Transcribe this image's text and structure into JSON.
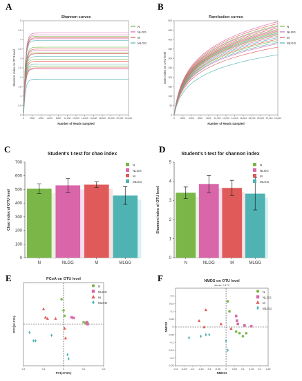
{
  "chart_data": [
    {
      "panel": "A",
      "type": "line",
      "title": "Shannon curves",
      "xlabel": "Number of Reads Sampled",
      "ylabel": "Shannon index on OTU level",
      "xlim": [
        0,
        24000
      ],
      "ylim": [
        0,
        5
      ],
      "xticks": [
        0,
        2000,
        4000,
        6000,
        8000,
        10000,
        12000,
        14000,
        16000,
        18000,
        20000,
        22000,
        24000
      ],
      "xtick_labels": [
        "0",
        "2000",
        "4000",
        "6000",
        "8000",
        "10,000",
        "12,000",
        "14,000",
        "16,000",
        "18,000",
        "20,000",
        "22,000",
        "24,000"
      ],
      "yticks": [
        0,
        0.5,
        1,
        1.5,
        2,
        2.5,
        3,
        3.5,
        4,
        4.5,
        5
      ],
      "ytick_labels": [
        "0",
        "0.5",
        "1",
        "1.5",
        "2",
        "2.5",
        "3",
        "3.5",
        "4",
        "4.5",
        "5"
      ],
      "legend": [
        "N",
        "NLGG",
        "M",
        "MLGG"
      ],
      "legend_position": "top-right",
      "colors": {
        "N": "#7ab648",
        "NLGG": "#d966a8",
        "M": "#e05a5a",
        "MLGG": "#4fb3b3"
      },
      "series": [
        {
          "group": "NLGG",
          "plateau": 4.35
        },
        {
          "group": "NLGG",
          "plateau": 4.25
        },
        {
          "group": "N",
          "plateau": 4.18
        },
        {
          "group": "M",
          "plateau": 4.1
        },
        {
          "group": "NLGG",
          "plateau": 4.05
        },
        {
          "group": "MLGG",
          "plateau": 3.95
        },
        {
          "group": "N",
          "plateau": 3.6
        },
        {
          "group": "M",
          "plateau": 3.5
        },
        {
          "group": "NLGG",
          "plateau": 3.42
        },
        {
          "group": "N",
          "plateau": 3.3
        },
        {
          "group": "M",
          "plateau": 3.25
        },
        {
          "group": "MLGG",
          "plateau": 3.1
        },
        {
          "group": "N",
          "plateau": 2.95
        },
        {
          "group": "M",
          "plateau": 2.85
        },
        {
          "group": "MLGG",
          "plateau": 2.7
        },
        {
          "group": "N",
          "plateau": 2.6
        },
        {
          "group": "M",
          "plateau": 2.5
        },
        {
          "group": "NLGG",
          "plateau": 2.45
        },
        {
          "group": "MLGG",
          "plateau": 1.9
        }
      ]
    },
    {
      "panel": "B",
      "type": "line",
      "title": "Rarefaction curves",
      "xlabel": "Number of Reads Sampled",
      "ylabel": "Sobs index on OTU level",
      "xlim": [
        0,
        24000
      ],
      "ylim": [
        0,
        500
      ],
      "xticks": [
        0,
        2000,
        4000,
        6000,
        8000,
        10000,
        12000,
        14000,
        16000,
        18000,
        20000,
        22000,
        24000
      ],
      "xtick_labels": [
        "0",
        "2000",
        "4000",
        "6000",
        "8000",
        "10,000",
        "12,000",
        "14,000",
        "16,000",
        "18,000",
        "20,000",
        "22,000",
        "24,000"
      ],
      "yticks": [
        0,
        50,
        100,
        150,
        200,
        250,
        300,
        350,
        400,
        450,
        500
      ],
      "ytick_labels": [
        "0",
        "50",
        "100",
        "150",
        "200",
        "250",
        "300",
        "350",
        "400",
        "450",
        "500"
      ],
      "legend": [
        "N",
        "NLGG",
        "M",
        "MLGG"
      ],
      "legend_position": "top-right",
      "series": [
        {
          "group": "NLGG",
          "end": 495
        },
        {
          "group": "M",
          "end": 485
        },
        {
          "group": "N",
          "end": 475
        },
        {
          "group": "NLGG",
          "end": 470
        },
        {
          "group": "M",
          "end": 462
        },
        {
          "group": "N",
          "end": 455
        },
        {
          "group": "NLGG",
          "end": 450
        },
        {
          "group": "M",
          "end": 445
        },
        {
          "group": "N",
          "end": 440
        },
        {
          "group": "MLGG",
          "end": 435
        },
        {
          "group": "M",
          "end": 430
        },
        {
          "group": "N",
          "end": 425
        },
        {
          "group": "NLGG",
          "end": 418
        },
        {
          "group": "MLGG",
          "end": 410
        },
        {
          "group": "M",
          "end": 402
        },
        {
          "group": "N",
          "end": 395
        },
        {
          "group": "MLGG",
          "end": 385
        },
        {
          "group": "NLGG",
          "end": 378
        },
        {
          "group": "M",
          "end": 360
        },
        {
          "group": "MLGG",
          "end": 320
        }
      ]
    },
    {
      "panel": "C",
      "type": "bar",
      "title": "Student's t-test for chao index",
      "ylabel": "Chao index of OTU level",
      "categories": [
        "N",
        "NLGG",
        "M",
        "MLGG"
      ],
      "values": [
        505,
        530,
        535,
        455
      ],
      "errors": [
        35,
        50,
        20,
        65
      ],
      "ylim": [
        0,
        700
      ],
      "yticks": [
        0,
        100,
        200,
        300,
        400,
        500,
        600,
        700
      ],
      "legend": [
        "N",
        "NLGG",
        "M",
        "MLGG"
      ],
      "legend_position": "top-right"
    },
    {
      "panel": "D",
      "type": "bar",
      "title": "Student's t-test for shannon index",
      "ylabel": "Shannon index of OTU level",
      "categories": [
        "N",
        "NLGG",
        "M",
        "MLGG"
      ],
      "values": [
        3.4,
        3.85,
        3.65,
        3.35
      ],
      "errors": [
        0.3,
        0.45,
        0.4,
        0.85
      ],
      "ylim": [
        0,
        5
      ],
      "yticks": [
        0,
        1,
        2,
        3,
        4,
        5
      ],
      "legend": [
        "N",
        "NLGG",
        "M",
        "MLGG"
      ],
      "legend_position": "top-right"
    },
    {
      "panel": "E",
      "type": "scatter",
      "title": "PCoA on OTU level",
      "xlabel": "PC1(17.5%)",
      "ylabel": "PC2(10.21%)",
      "xlim": [
        -0.2,
        0.2
      ],
      "ylim": [
        -0.3,
        0.3
      ],
      "xticks": [
        -0.2,
        -0.1,
        0,
        0.1,
        0.2
      ],
      "xtick_labels": [
        "0.2",
        "0.1",
        "0",
        "0.1",
        "0.2"
      ],
      "legend": [
        "N",
        "NLGG",
        "M",
        "MLGG"
      ],
      "legend_position": "top-right",
      "points": [
        {
          "group": "N",
          "x": -0.01,
          "y": 0.18
        },
        {
          "group": "N",
          "x": 0.0,
          "y": 0.1
        },
        {
          "group": "N",
          "x": 0.1,
          "y": 0.015
        },
        {
          "group": "N",
          "x": 0.11,
          "y": 0.005
        },
        {
          "group": "N",
          "x": 0.12,
          "y": 0.01
        },
        {
          "group": "N",
          "x": 0.005,
          "y": 0.06
        },
        {
          "group": "NLGG",
          "x": 0.04,
          "y": 0.05
        },
        {
          "group": "NLGG",
          "x": 0.05,
          "y": 0.045
        },
        {
          "group": "NLGG",
          "x": 0.12,
          "y": 0.0
        },
        {
          "group": "NLGG",
          "x": 0.115,
          "y": 0.015
        },
        {
          "group": "M",
          "x": -0.1,
          "y": 0.11
        },
        {
          "group": "M",
          "x": -0.09,
          "y": 0.05
        },
        {
          "group": "M",
          "x": -0.08,
          "y": 0.04
        },
        {
          "group": "M",
          "x": -0.04,
          "y": 0.04
        },
        {
          "group": "M",
          "x": 0.005,
          "y": -0.03
        },
        {
          "group": "M",
          "x": 0.01,
          "y": -0.1
        },
        {
          "group": "MLGG",
          "x": -0.15,
          "y": -0.12
        },
        {
          "group": "MLGG",
          "x": -0.14,
          "y": -0.12
        },
        {
          "group": "MLGG",
          "x": -0.17,
          "y": -0.06
        },
        {
          "group": "MLGG",
          "x": -0.06,
          "y": -0.08
        },
        {
          "group": "MLGG",
          "x": 0.02,
          "y": -0.22
        },
        {
          "group": "MLGG",
          "x": 0.025,
          "y": -0.25
        }
      ]
    },
    {
      "panel": "F",
      "type": "scatter",
      "title": "NMDS on OTU level",
      "subtitle": "stress: 0.174",
      "xlabel": "NMDS1",
      "ylabel": "NMDS2",
      "xlim": [
        -0.3,
        0.25
      ],
      "ylim": [
        -0.25,
        0.25
      ],
      "xticks": [
        -0.3,
        -0.25,
        -0.2,
        -0.15,
        -0.1,
        -0.05,
        0,
        0.05,
        0.1,
        0.15,
        0.2,
        0.25
      ],
      "xtick_labels": [
        "-0.3",
        "-0.25",
        "-0.2",
        "-0.15",
        "-0.1",
        "-0.05",
        "0",
        "0.05",
        "0.1",
        "0.15",
        "0.2",
        "0.25"
      ],
      "yticks": [
        -0.25,
        -0.2,
        -0.15,
        -0.1,
        -0.05,
        0,
        0.05,
        0.1,
        0.15,
        0.2
      ],
      "ytick_labels": [
        "-0.25",
        "-0.2",
        "-0.15",
        "-0.1",
        "-0.05",
        "0",
        "0.05",
        "0.1",
        "0.15",
        "0.2"
      ],
      "legend": [
        "N",
        "NLGG",
        "M",
        "MLGG"
      ],
      "legend_position": "top-right",
      "points": [
        {
          "group": "N",
          "x": 0.01,
          "y": 0.165
        },
        {
          "group": "N",
          "x": 0.02,
          "y": 0.1
        },
        {
          "group": "N",
          "x": 0.06,
          "y": -0.03
        },
        {
          "group": "N",
          "x": 0.08,
          "y": -0.04
        },
        {
          "group": "N",
          "x": 0.12,
          "y": -0.04
        },
        {
          "group": "N",
          "x": 0.1,
          "y": -0.06
        },
        {
          "group": "NLGG",
          "x": 0.06,
          "y": 0.07
        },
        {
          "group": "NLGG",
          "x": 0.065,
          "y": 0.04
        },
        {
          "group": "NLGG",
          "x": 0.07,
          "y": 0.02
        },
        {
          "group": "NLGG",
          "x": 0.11,
          "y": 0.01
        },
        {
          "group": "NLGG",
          "x": 0.15,
          "y": 0.005
        },
        {
          "group": "M",
          "x": -0.12,
          "y": 0.11
        },
        {
          "group": "M",
          "x": -0.16,
          "y": 0.04
        },
        {
          "group": "M",
          "x": -0.03,
          "y": 0.02
        },
        {
          "group": "M",
          "x": 0.03,
          "y": -0.01
        },
        {
          "group": "M",
          "x": -0.13,
          "y": 0.0
        },
        {
          "group": "MLGG",
          "x": -0.22,
          "y": -0.07
        },
        {
          "group": "MLGG",
          "x": -0.15,
          "y": -0.06
        },
        {
          "group": "MLGG",
          "x": -0.12,
          "y": -0.05
        },
        {
          "group": "MLGG",
          "x": -0.1,
          "y": -0.05
        },
        {
          "group": "MLGG",
          "x": 0.0,
          "y": -0.09
        },
        {
          "group": "MLGG",
          "x": 0.01,
          "y": -0.15
        }
      ]
    }
  ],
  "colors": {
    "N": "#7ab648",
    "NLGG": "#d966a8",
    "M": "#e05a5a",
    "MLGG": "#4fb3b3",
    "light_N": "#e8f4dc",
    "light_NLGG": "#f6def0",
    "light_M": "#fbe0e0",
    "light_MLGG": "#d9f1f4"
  },
  "markers": {
    "N": "circle",
    "NLGG": "square",
    "M": "triangle",
    "MLGG": "diamond"
  }
}
